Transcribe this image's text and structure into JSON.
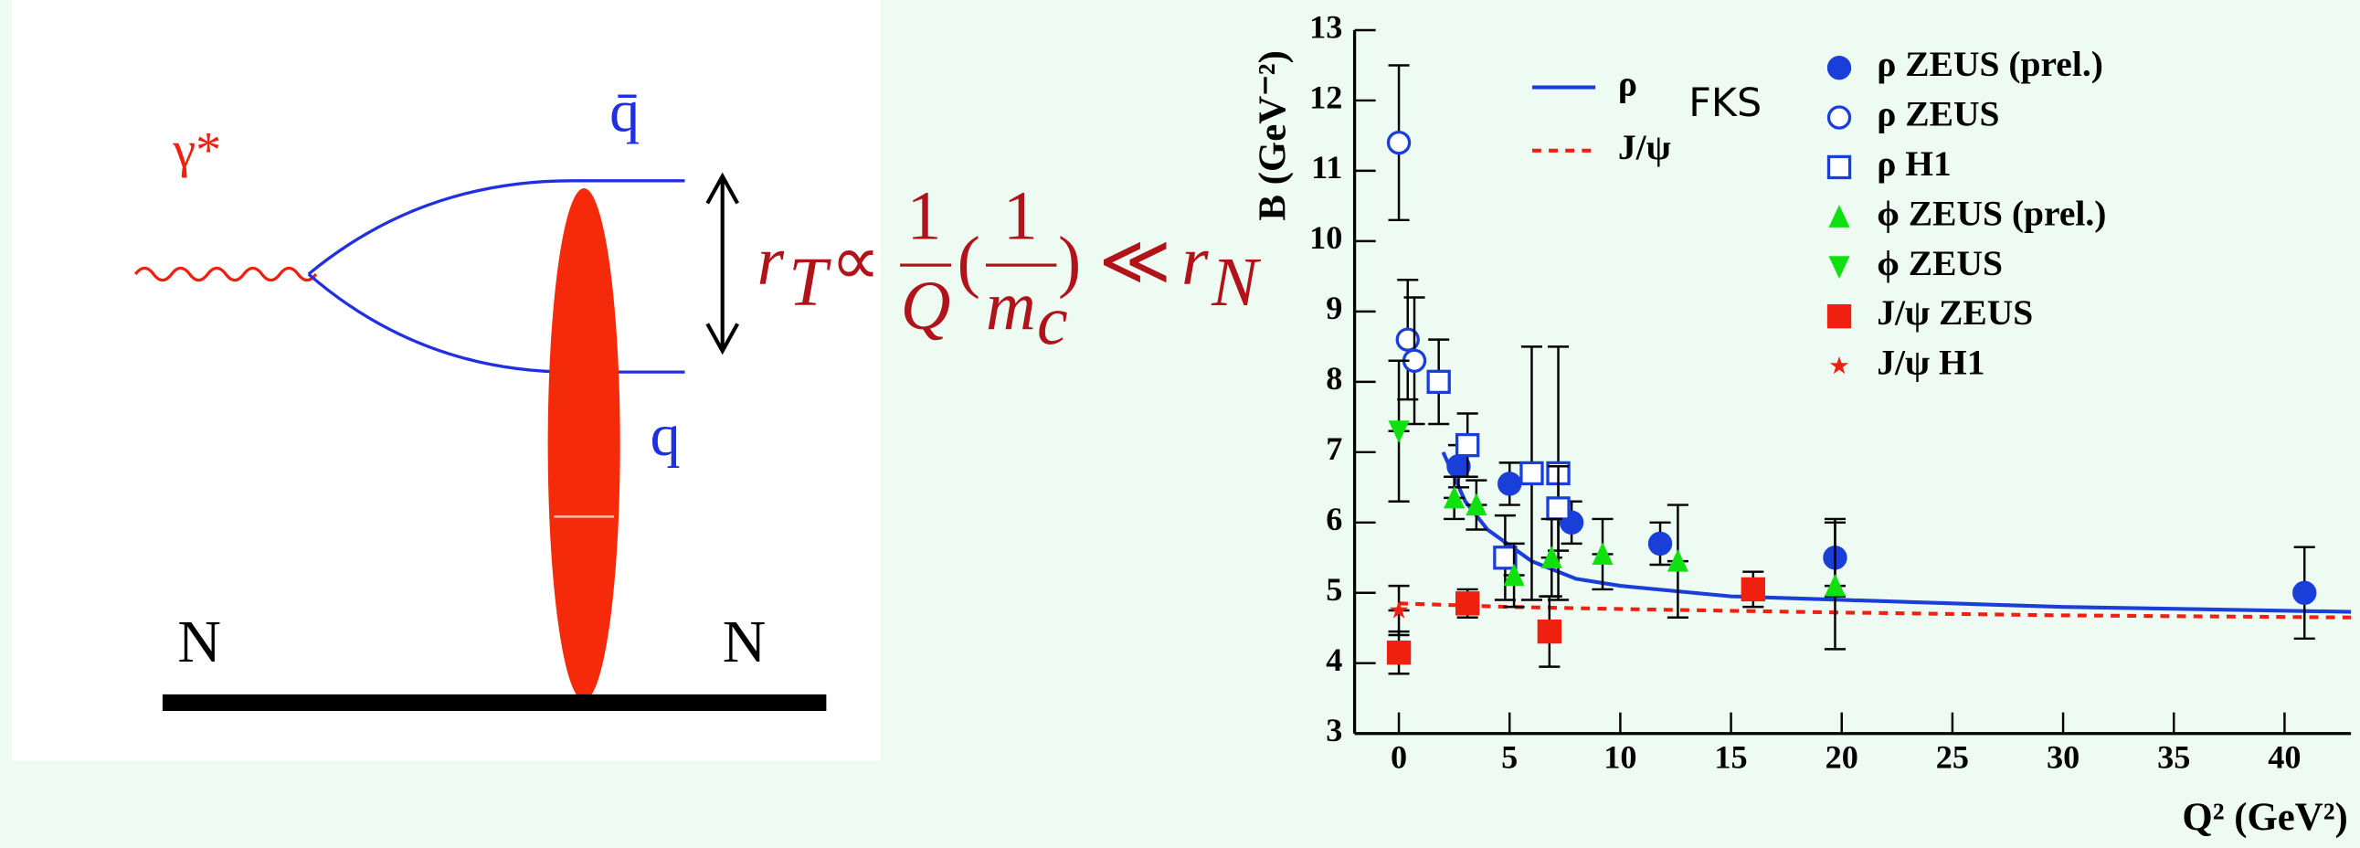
{
  "diagram": {
    "photon": "γ*",
    "antiquark": "q̄",
    "quark": "q",
    "nucleon_left": "N",
    "nucleon_right": "N",
    "formula": {
      "lhs": "r",
      "lhs_sub": "T",
      "relation": "∝",
      "num1": "1",
      "den1": "Q",
      "open": "(",
      "num2": "1",
      "den2": "m",
      "den2_sub": "c",
      "close": ")",
      "much_less": "≪",
      "rhs": "r",
      "rhs_sub": "N"
    }
  },
  "chart_data": {
    "type": "scatter",
    "xlabel": "Q² (GeV²)",
    "ylabel": "B (GeV⁻²)",
    "annotation": "FKS",
    "xlim": [
      -2,
      43
    ],
    "ylim": [
      3,
      13
    ],
    "xticks": [
      0,
      5,
      10,
      15,
      20,
      25,
      30,
      35,
      40
    ],
    "yticks": [
      3,
      4,
      5,
      6,
      7,
      8,
      9,
      10,
      11,
      12,
      13
    ],
    "series": [
      {
        "name": "ρ",
        "color": "#1a3fd8",
        "style": "solid",
        "x": [
          2,
          3,
          4,
          6,
          8,
          10,
          15,
          20,
          30,
          43
        ],
        "values": [
          7.0,
          6.3,
          5.9,
          5.45,
          5.2,
          5.1,
          4.95,
          4.9,
          4.8,
          4.73
        ]
      },
      {
        "name": "J/ψ",
        "color": "#f02010",
        "style": "dashed",
        "x": [
          0,
          5,
          10,
          20,
          30,
          43
        ],
        "values": [
          4.85,
          4.8,
          4.77,
          4.72,
          4.68,
          4.65
        ]
      },
      {
        "name": "ρ ZEUS (prel.)",
        "color": "#1a3fd8",
        "marker": "circle-filled",
        "x": [
          2.7,
          5,
          7.8,
          11.8,
          19.7,
          40.9
        ],
        "values": [
          6.8,
          6.55,
          6.0,
          5.7,
          5.5,
          5.0
        ],
        "errors": [
          0.3,
          0.3,
          0.3,
          0.3,
          0.55,
          0.65
        ]
      },
      {
        "name": "ρ ZEUS",
        "color": "#1a3fd8",
        "marker": "circle-open",
        "x": [
          0,
          0.4,
          0.7
        ],
        "values": [
          11.4,
          8.6,
          8.3
        ],
        "errors": [
          1.1,
          0.85,
          0.9
        ]
      },
      {
        "name": "ρ H1",
        "color": "#1a3fd8",
        "marker": "square-open",
        "x": [
          1.8,
          3.1,
          4.8,
          6.0,
          7.2,
          7.2
        ],
        "values": [
          8.0,
          7.1,
          5.5,
          6.7,
          6.7,
          6.2
        ],
        "errors": [
          0.6,
          0.45,
          0.6,
          1.8,
          1.8,
          0.6
        ]
      },
      {
        "name": "ϕ ZEUS (prel.)",
        "color": "#10e010",
        "marker": "triangle-up",
        "x": [
          2.5,
          3.5,
          5.2,
          6.9,
          9.2,
          12.6,
          19.7
        ],
        "values": [
          6.35,
          6.25,
          5.25,
          5.5,
          5.55,
          5.45,
          5.1
        ],
        "errors": [
          0.3,
          0.35,
          0.45,
          0.55,
          0.5,
          0.8,
          0.9
        ]
      },
      {
        "name": "ϕ ZEUS",
        "color": "#10e010",
        "marker": "triangle-down",
        "x": [
          0
        ],
        "values": [
          7.3
        ],
        "errors": [
          1.0
        ]
      },
      {
        "name": "J/ψ ZEUS",
        "color": "#f02010",
        "marker": "square-filled",
        "x": [
          0,
          3.1,
          6.8,
          16
        ],
        "values": [
          4.15,
          4.85,
          4.45,
          5.05
        ],
        "errors": [
          0.3,
          0.2,
          0.5,
          0.25
        ]
      },
      {
        "name": "J/ψ H1",
        "color": "#f02010",
        "marker": "star",
        "x": [
          0
        ],
        "values": [
          4.75
        ],
        "errors": [
          0.35
        ]
      }
    ]
  }
}
